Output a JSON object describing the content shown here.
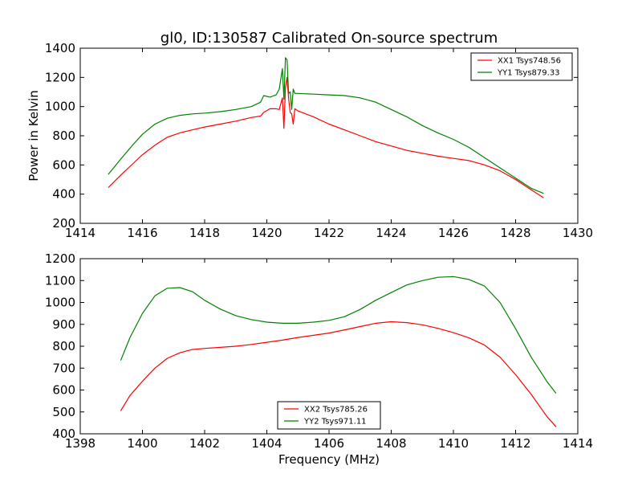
{
  "figure": {
    "title": "gl0, ID:130587 Calibrated On-source spectrum",
    "ylabel": "Power in Kelvin",
    "xlabel": "Frequency (MHz)"
  },
  "chart_data": [
    {
      "type": "line",
      "title": "gl0, ID:130587 Calibrated On-source spectrum",
      "xlabel": "",
      "ylabel": "Power in Kelvin",
      "xlim": [
        1414,
        1430
      ],
      "ylim": [
        200,
        1400
      ],
      "xticks": [
        1414,
        1416,
        1418,
        1420,
        1422,
        1424,
        1426,
        1428,
        1430
      ],
      "yticks": [
        200,
        400,
        600,
        800,
        1000,
        1200,
        1400
      ],
      "grid": false,
      "legend_position": "top-right",
      "series": [
        {
          "name": "XX1 Tsys748.56",
          "color": "#ff0000",
          "x": [
            1414.9,
            1415.3,
            1415.7,
            1416.0,
            1416.4,
            1416.8,
            1417.2,
            1417.6,
            1418.0,
            1418.5,
            1419.0,
            1419.5,
            1419.8,
            1419.9,
            1420.1,
            1420.3,
            1420.4,
            1420.5,
            1420.55,
            1420.6,
            1420.65,
            1420.7,
            1420.75,
            1420.8,
            1420.85,
            1420.9,
            1421.0,
            1421.5,
            1422.0,
            1422.5,
            1423.0,
            1423.5,
            1424.0,
            1424.5,
            1425.0,
            1425.5,
            1426.0,
            1426.5,
            1427.0,
            1427.5,
            1428.0,
            1428.5,
            1428.9
          ],
          "values": [
            445,
            530,
            610,
            670,
            735,
            790,
            820,
            840,
            860,
            880,
            900,
            925,
            935,
            960,
            985,
            985,
            980,
            1060,
            850,
            1130,
            1200,
            1060,
            960,
            950,
            880,
            985,
            970,
            930,
            880,
            840,
            800,
            760,
            730,
            700,
            680,
            660,
            645,
            630,
            600,
            560,
            500,
            430,
            375
          ]
        },
        {
          "name": "YY1 Tsys879.33",
          "color": "#008000",
          "x": [
            1414.9,
            1415.3,
            1415.7,
            1416.0,
            1416.4,
            1416.8,
            1417.2,
            1417.6,
            1418.0,
            1418.5,
            1419.0,
            1419.5,
            1419.8,
            1419.9,
            1420.1,
            1420.3,
            1420.4,
            1420.5,
            1420.55,
            1420.6,
            1420.65,
            1420.7,
            1420.75,
            1420.8,
            1420.85,
            1420.9,
            1421.0,
            1421.5,
            1422.0,
            1422.5,
            1423.0,
            1423.5,
            1424.0,
            1424.5,
            1425.0,
            1425.5,
            1426.0,
            1426.5,
            1427.0,
            1427.5,
            1428.0,
            1428.5,
            1428.9
          ],
          "values": [
            535,
            640,
            740,
            810,
            880,
            920,
            940,
            950,
            955,
            965,
            980,
            1000,
            1030,
            1075,
            1065,
            1080,
            1120,
            1260,
            1050,
            1335,
            1320,
            1090,
            1100,
            980,
            1120,
            1090,
            1090,
            1085,
            1080,
            1075,
            1060,
            1030,
            980,
            930,
            870,
            820,
            775,
            720,
            650,
            580,
            510,
            440,
            405
          ]
        }
      ]
    },
    {
      "type": "line",
      "title": "",
      "xlabel": "Frequency (MHz)",
      "ylabel": "",
      "xlim": [
        1398,
        1414
      ],
      "ylim": [
        400,
        1200
      ],
      "xticks": [
        1398,
        1400,
        1402,
        1404,
        1406,
        1408,
        1410,
        1412,
        1414
      ],
      "yticks": [
        400,
        500,
        600,
        700,
        800,
        900,
        1000,
        1100,
        1200
      ],
      "grid": false,
      "legend_position": "lower-center",
      "series": [
        {
          "name": "XX2 Tsys785.26",
          "color": "#ff0000",
          "x": [
            1399.3,
            1399.6,
            1400.0,
            1400.4,
            1400.8,
            1401.2,
            1401.6,
            1402.0,
            1402.5,
            1403.0,
            1403.5,
            1404.0,
            1404.5,
            1405.0,
            1405.5,
            1406.0,
            1406.5,
            1407.0,
            1407.5,
            1408.0,
            1408.5,
            1409.0,
            1409.5,
            1410.0,
            1410.5,
            1411.0,
            1411.5,
            1412.0,
            1412.5,
            1413.0,
            1413.3
          ],
          "values": [
            505,
            575,
            640,
            700,
            745,
            770,
            785,
            790,
            795,
            800,
            808,
            818,
            828,
            840,
            850,
            860,
            875,
            890,
            905,
            912,
            908,
            898,
            882,
            862,
            838,
            805,
            750,
            670,
            580,
            480,
            432
          ]
        },
        {
          "name": "YY2 Tsys971.11",
          "color": "#008000",
          "x": [
            1399.3,
            1399.6,
            1400.0,
            1400.4,
            1400.8,
            1401.2,
            1401.6,
            1402.0,
            1402.5,
            1403.0,
            1403.5,
            1404.0,
            1404.5,
            1405.0,
            1405.5,
            1406.0,
            1406.5,
            1407.0,
            1407.5,
            1408.0,
            1408.5,
            1409.0,
            1409.5,
            1410.0,
            1410.5,
            1411.0,
            1411.5,
            1412.0,
            1412.5,
            1413.0,
            1413.3
          ],
          "values": [
            735,
            840,
            950,
            1030,
            1065,
            1068,
            1050,
            1010,
            970,
            940,
            922,
            910,
            905,
            905,
            910,
            918,
            935,
            968,
            1010,
            1045,
            1080,
            1100,
            1115,
            1118,
            1105,
            1075,
            1000,
            880,
            750,
            640,
            585
          ]
        }
      ]
    }
  ]
}
